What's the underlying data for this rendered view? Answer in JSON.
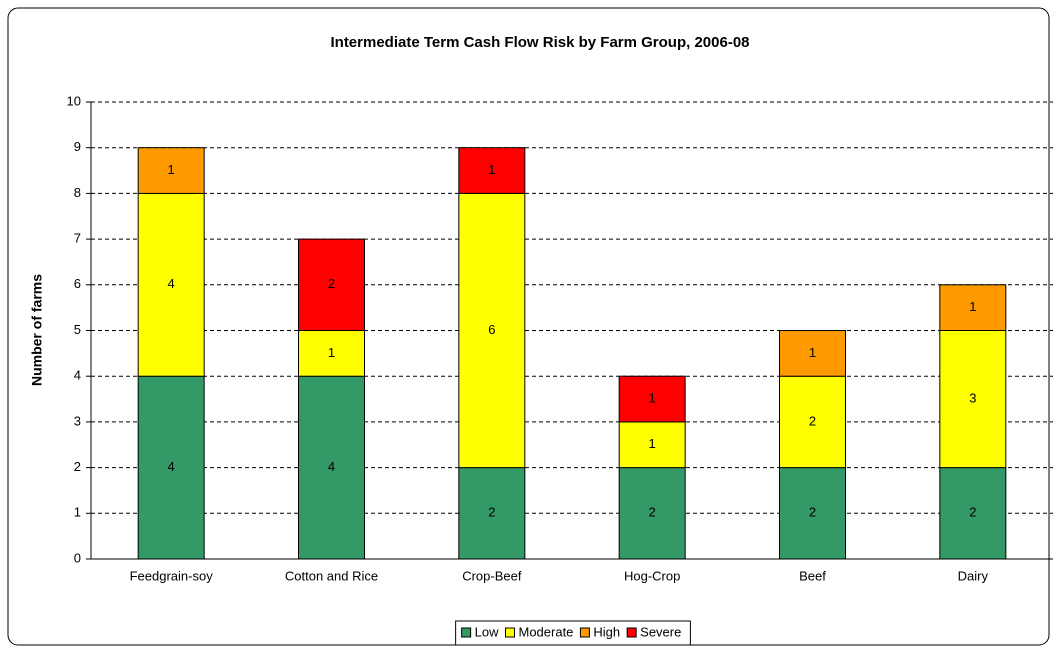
{
  "chart_data": {
    "type": "stacked_bar",
    "title": "Intermediate Term Cash Flow Risk by Farm Group, 2006-08",
    "y_label": "Number of farms",
    "categories": [
      "Feedgrain-soy",
      "Cotton and Rice",
      "Crop-Beef",
      "Hog-Crop",
      "Beef",
      "Dairy"
    ],
    "series": [
      {
        "name": "Low",
        "color": "#339966",
        "values": [
          4,
          4,
          2,
          2,
          2,
          2
        ]
      },
      {
        "name": "Moderate",
        "color": "#ffff00",
        "values": [
          4,
          1,
          6,
          1,
          2,
          3
        ]
      },
      {
        "name": "High",
        "color": "#ff9900",
        "values": [
          1,
          0,
          0,
          0,
          1,
          1
        ]
      },
      {
        "name": "Severe",
        "color": "#ff0000",
        "values": [
          0,
          2,
          1,
          1,
          0,
          0
        ]
      }
    ],
    "ylim": [
      0,
      10
    ],
    "yticks": [
      0,
      1,
      2,
      3,
      4,
      5,
      6,
      7,
      8,
      9,
      10
    ],
    "grid": true,
    "legend": "bottom"
  }
}
